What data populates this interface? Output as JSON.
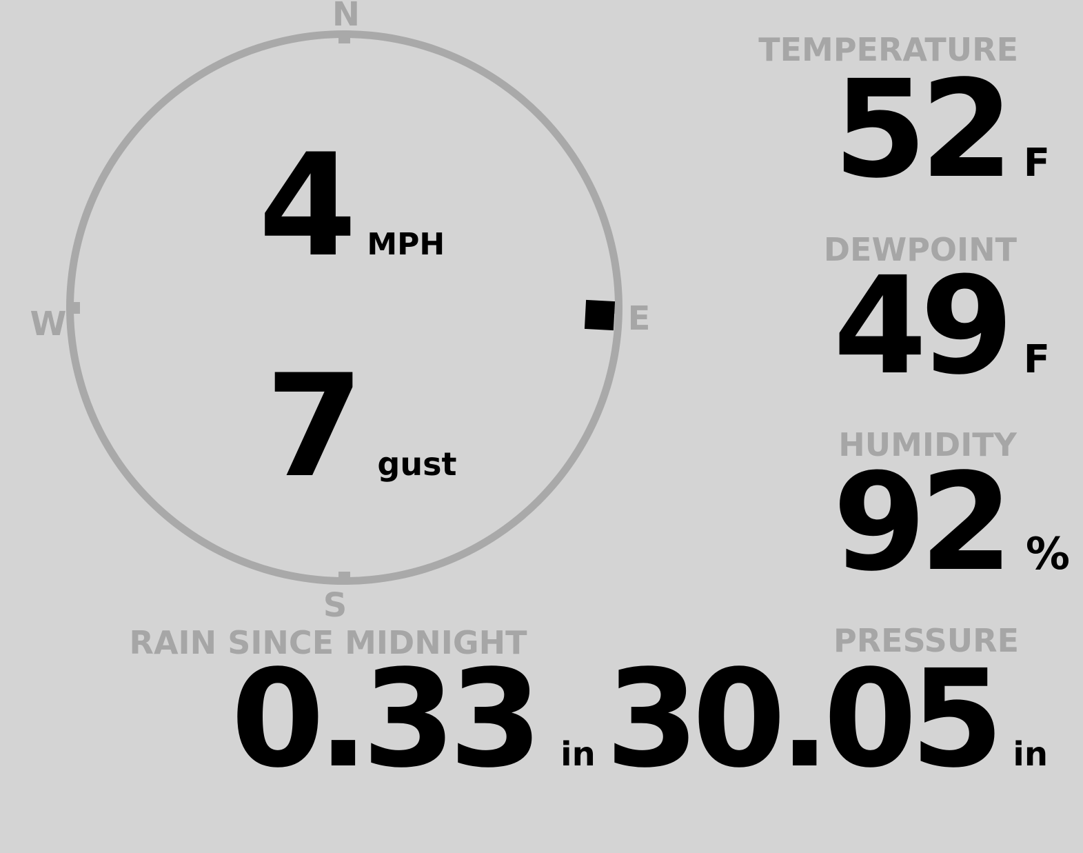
{
  "colors": {
    "background": "#d4d4d4",
    "muted_text": "#a6a6a6",
    "ring": "#a9a9a9",
    "value_text": "#000000",
    "wind_marker": "#000000"
  },
  "compass": {
    "north": "N",
    "east": "E",
    "south": "S",
    "west": "W",
    "wind_direction": "E"
  },
  "wind": {
    "speed": "4",
    "speed_unit": "MPH",
    "gust": "7",
    "gust_unit": "gust"
  },
  "temperature": {
    "label": "TEMPERATURE",
    "value": "52",
    "unit": "F"
  },
  "dewpoint": {
    "label": "DEWPOINT",
    "value": "49",
    "unit": "F"
  },
  "humidity": {
    "label": "HUMIDITY",
    "value": "92",
    "unit": "%"
  },
  "rain": {
    "label": "RAIN SINCE MIDNIGHT",
    "value": "0.33",
    "unit": "in"
  },
  "pressure": {
    "label": "PRESSURE",
    "value": "30.05",
    "unit": "in"
  }
}
